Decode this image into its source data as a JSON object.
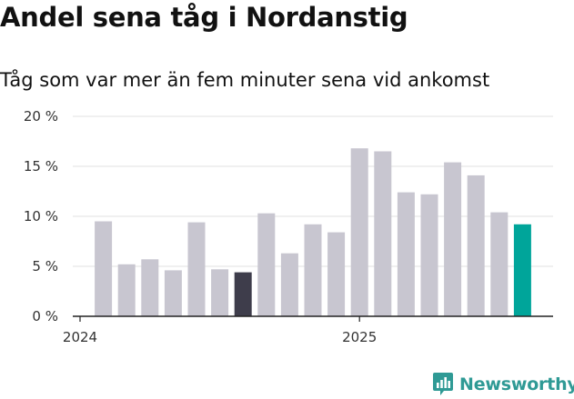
{
  "header": {
    "title": "Andel sena tåg i Nordanstig",
    "subtitle": "Tåg som var mer än fem minuter sena vid ankomst"
  },
  "brand": {
    "name": "Newsworthy",
    "icon": "newsworthy-logo-icon",
    "color": "#2f9a95"
  },
  "colors": {
    "bar_default": "#c8c6d0",
    "bar_highlight_dark": "#3e3d4b",
    "bar_highlight_latest": "#00a59a",
    "gridline": "#e0e0e0",
    "axis": "#222222"
  },
  "chart_data": {
    "type": "bar",
    "title": "Andel sena tåg i Nordanstig",
    "subtitle": "Tåg som var mer än fem minuter sena vid ankomst",
    "xlabel": "",
    "ylabel": "",
    "y_unit": "%",
    "ylim": [
      0,
      20
    ],
    "y_ticks": [
      0,
      5,
      10,
      15,
      20
    ],
    "y_tick_labels": [
      "0 %",
      "5 %",
      "10 %",
      "15 %",
      "20 %"
    ],
    "x_tick_labels": [
      {
        "label": "2024",
        "at_category": "2024-01"
      },
      {
        "label": "2025",
        "at_category": "2025-01"
      }
    ],
    "grid": true,
    "legend": "none",
    "categories": [
      "2024-02",
      "2024-03",
      "2024-04",
      "2024-05",
      "2024-06",
      "2024-07",
      "2024-08",
      "2024-09",
      "2024-10",
      "2024-11",
      "2024-12",
      "2025-01",
      "2025-02",
      "2025-03",
      "2025-04",
      "2025-05",
      "2025-06",
      "2025-07",
      "2025-08"
    ],
    "values": [
      9.5,
      5.2,
      5.7,
      4.6,
      9.4,
      4.7,
      4.4,
      10.3,
      6.3,
      9.2,
      8.4,
      16.8,
      16.5,
      12.4,
      12.2,
      15.4,
      14.1,
      10.4,
      9.2
    ],
    "highlight": [
      {
        "category": "2024-08",
        "color": "#3e3d4b"
      },
      {
        "category": "2025-08",
        "color": "#00a59a"
      }
    ]
  }
}
